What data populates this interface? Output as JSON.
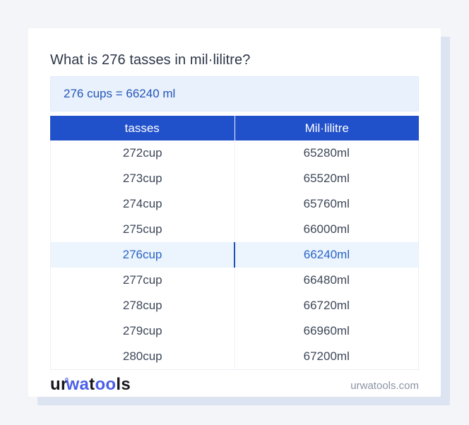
{
  "title": "What is 276 tasses in mil·lilitre?",
  "answer_box": {
    "text": "276 cups = 66240 ml"
  },
  "table": {
    "headers": [
      "tasses",
      "Mil·lilitre"
    ],
    "highlight_index": 4,
    "rows": [
      [
        "272cup",
        "65280ml"
      ],
      [
        "273cup",
        "65520ml"
      ],
      [
        "274cup",
        "65760ml"
      ],
      [
        "275cup",
        "66000ml"
      ],
      [
        "276cup",
        "66240ml"
      ],
      [
        "277cup",
        "66480ml"
      ],
      [
        "278cup",
        "66720ml"
      ],
      [
        "279cup",
        "66960ml"
      ],
      [
        "280cup",
        "67200ml"
      ]
    ]
  },
  "footer": {
    "logo_text": "urwatools",
    "logo_segments": [
      {
        "text": "ur",
        "color": "#16161d"
      },
      {
        "text": "°",
        "color": "#4a5fe8",
        "ring": true
      },
      {
        "text": "wa",
        "color": "#4a5fe8"
      },
      {
        "text": "t",
        "color": "#16161d"
      },
      {
        "text": "oo",
        "color": "#4a5fe8"
      },
      {
        "text": "ls",
        "color": "#16161d"
      }
    ],
    "site_text": "urwatools.com"
  },
  "colors": {
    "page_bg": "#f3f5f9",
    "card_shadow": "#dde4f1",
    "header_bg": "#2150cb",
    "answer_bg": "#e9f1fc",
    "answer_text": "#2456b8",
    "highlight_bg": "#ecf4fd",
    "highlight_text": "#2a64c6",
    "highlight_divider": "#1d52b2",
    "row_text": "#3d4758",
    "title_text": "#2b3648",
    "logo_blue": "#4a5fe8",
    "site_text_color": "#8b94a5"
  }
}
